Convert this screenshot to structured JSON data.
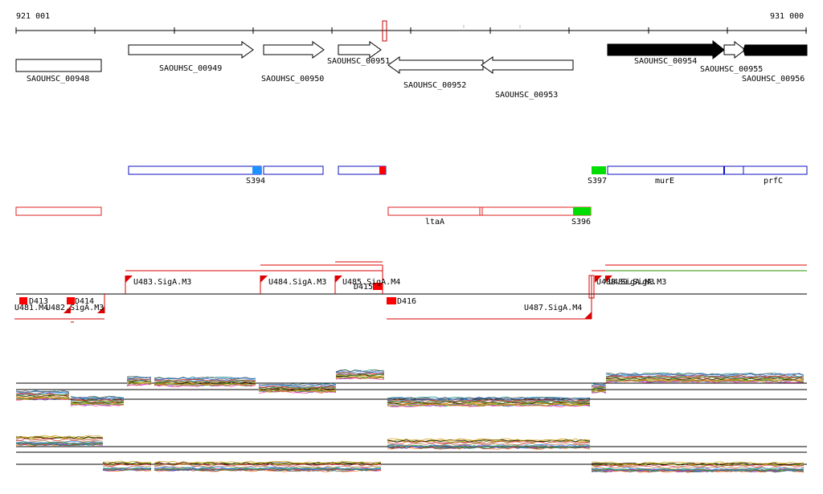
{
  "ruler": {
    "start_label": "921 001",
    "end_label": "931 000"
  },
  "genes": [
    {
      "id": "SAOUHSC_00948"
    },
    {
      "id": "SAOUHSC_00949"
    },
    {
      "id": "SAOUHSC_00950"
    },
    {
      "id": "SAOUHSC_00951"
    },
    {
      "id": "SAOUHSC_00952"
    },
    {
      "id": "SAOUHSC_00953"
    },
    {
      "id": "SAOUHSC_00954"
    },
    {
      "id": "SAOUHSC_00955"
    },
    {
      "id": "SAOUHSC_00956"
    }
  ],
  "sense_features": [
    {
      "name": "S394",
      "color": "#1e90ff"
    },
    {
      "name": "",
      "color": "#ff0000"
    },
    {
      "name": "S397",
      "color": "#00dd00"
    },
    {
      "name": "murE"
    },
    {
      "name": "prfC"
    }
  ],
  "antisense_features": [
    {
      "name": "ltaA"
    },
    {
      "name": "S396",
      "color": "#00dd00"
    }
  ],
  "segments": [
    {
      "name": "U483.SigA.M3"
    },
    {
      "name": "U484.SigA.M3"
    },
    {
      "name": "U485.SigA.M4"
    },
    {
      "name": "D415"
    },
    {
      "name": "D413"
    },
    {
      "name": "D414"
    },
    {
      "name": "U481.M4"
    },
    {
      "name": "U482.SigA.M3"
    },
    {
      "name": "D416"
    },
    {
      "name": "U487.SigA.M4"
    },
    {
      "name": "U488.SigA.M3"
    },
    {
      "name": "U489.SigA.M3"
    }
  ],
  "colors": {
    "sense_outline": "#1010c0",
    "antisense_outline": "#dd2222",
    "segment": "#dd0000",
    "highlight_box": "#c00000"
  }
}
